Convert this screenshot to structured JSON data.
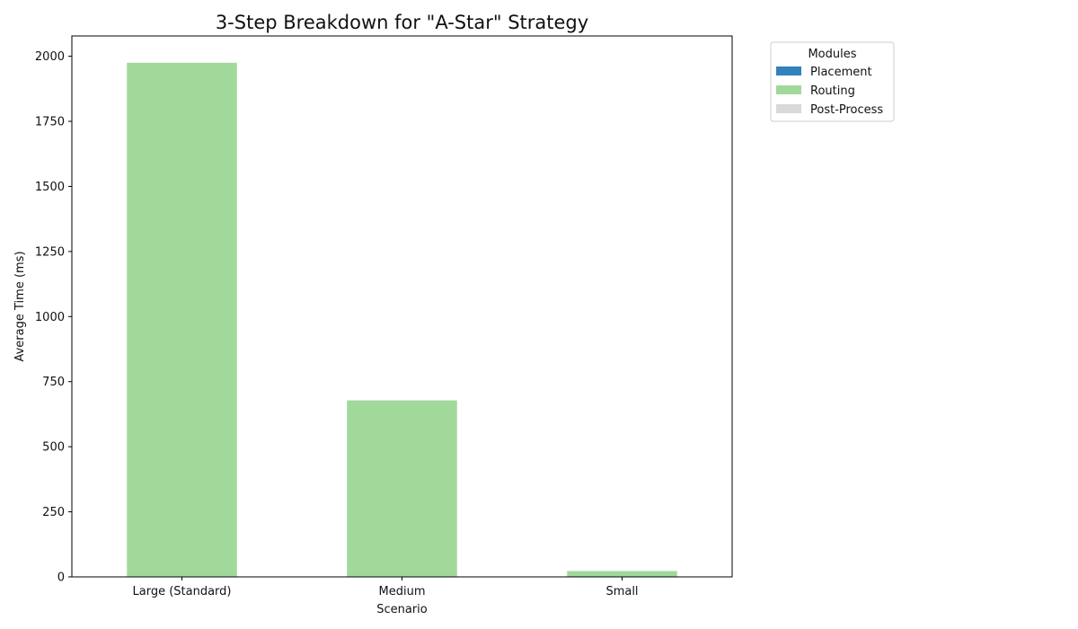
{
  "chart_data": {
    "type": "bar",
    "stacked": true,
    "title": "3-Step Breakdown for \"A-Star\" Strategy",
    "xlabel": "Scenario",
    "ylabel": "Average Time (ms)",
    "categories": [
      "Large (Standard)",
      "Medium",
      "Small"
    ],
    "series": [
      {
        "name": "Placement",
        "color": "#3182bd",
        "values": [
          2,
          2,
          0.5
        ]
      },
      {
        "name": "Routing",
        "color": "#a1d99b",
        "values": [
          1973,
          676,
          22
        ]
      },
      {
        "name": "Post-Process",
        "color": "#d9d9d9",
        "values": [
          0.3,
          0.3,
          0.1
        ]
      }
    ],
    "ylim": [
      0,
      2078
    ],
    "yticks": [
      0,
      250,
      500,
      750,
      1000,
      1250,
      1500,
      1750,
      2000
    ],
    "grid": false,
    "legend": {
      "title": "Modules",
      "placement": "outside-upper-right"
    }
  }
}
